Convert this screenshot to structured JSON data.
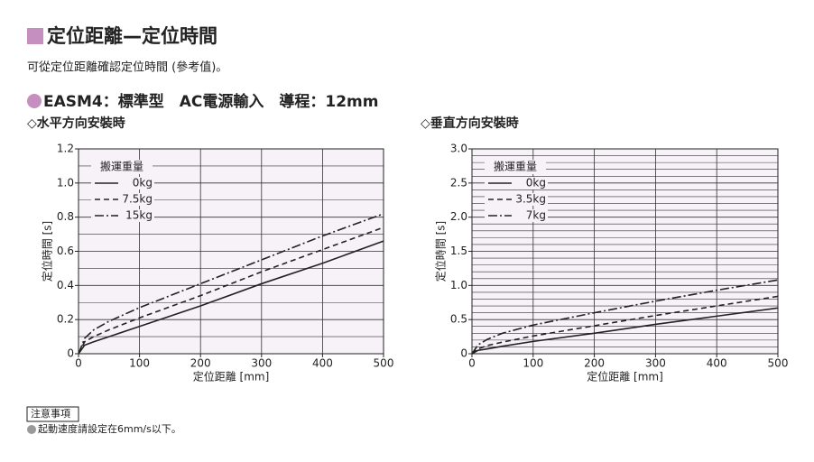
{
  "header": {
    "title": "定位距離—定位時間",
    "subtitle": "可從定位距離確認定位時間 (參考值)。",
    "section": "EASM4：標準型　AC電源輸入　導程：12mm"
  },
  "notes": {
    "heading": "注意事項",
    "items": [
      "起動速度請設定在6mm/s以下。"
    ]
  },
  "chart_data": [
    {
      "type": "line",
      "title": "◇水平方向安裝時",
      "xlabel": "定位距離 [mm]",
      "ylabel": "定位時間 [s]",
      "legend_title": "搬運重量",
      "legend": "upper left",
      "grid": true,
      "background": "#f7f1f8",
      "x": [
        0,
        10,
        25,
        50,
        100,
        200,
        300,
        400,
        500
      ],
      "xlim": [
        0,
        500
      ],
      "xticks": [
        0,
        100,
        200,
        300,
        400,
        500
      ],
      "ylim": [
        0,
        1.2
      ],
      "yticks": [
        0,
        0.2,
        0.4,
        0.6,
        0.8,
        {
          "value": 1,
          "label": "1.0"
        },
        1.2
      ],
      "y_minor_grid": [
        0.1,
        0.3,
        0.5,
        0.7,
        0.9,
        1.1
      ],
      "series": [
        {
          "name": "0kg",
          "color": "#222222",
          "dash": "solid",
          "values": [
            0,
            0.05,
            0.07,
            0.1,
            0.16,
            0.28,
            0.41,
            0.53,
            0.66
          ]
        },
        {
          "name": "7.5kg",
          "color": "#222222",
          "dash": "dashed",
          "values": [
            0,
            0.07,
            0.1,
            0.14,
            0.21,
            0.34,
            0.48,
            0.61,
            0.74
          ]
        },
        {
          "name": "15kg",
          "color": "#222222",
          "dash": "dashdot",
          "values": [
            0,
            0.09,
            0.14,
            0.19,
            0.27,
            0.41,
            0.55,
            0.69,
            0.82
          ]
        }
      ]
    },
    {
      "type": "line",
      "title": "◇垂直方向安裝時",
      "xlabel": "定位距離 [mm]",
      "ylabel": "定位時間 [s]",
      "legend_title": "搬運重量",
      "legend": "upper left",
      "grid": true,
      "background": "#f7f1f8",
      "x": [
        0,
        10,
        25,
        50,
        100,
        200,
        300,
        400,
        500
      ],
      "xlim": [
        0,
        500
      ],
      "xticks": [
        0,
        100,
        200,
        300,
        400,
        500
      ],
      "ylim": [
        0,
        3
      ],
      "yticks": [
        0,
        0.5,
        {
          "value": 1,
          "label": "1.0"
        },
        1.5,
        {
          "value": 2,
          "label": "2.0"
        },
        2.5,
        {
          "value": 3,
          "label": "3.0"
        }
      ],
      "y_minor_grid": [
        0.1,
        0.2,
        0.3,
        0.4,
        0.6,
        0.7,
        0.8,
        0.9,
        1.1,
        1.2,
        1.3,
        1.4,
        1.6,
        1.7,
        1.8,
        1.9,
        2.1,
        2.2,
        2.3,
        2.4,
        2.6,
        2.7,
        2.8,
        2.9
      ],
      "series": [
        {
          "name": "0kg",
          "color": "#222222",
          "dash": "solid",
          "values": [
            0,
            0.05,
            0.07,
            0.11,
            0.18,
            0.3,
            0.43,
            0.55,
            0.67
          ]
        },
        {
          "name": "3.5kg",
          "color": "#222222",
          "dash": "dashed",
          "values": [
            0,
            0.07,
            0.12,
            0.17,
            0.26,
            0.41,
            0.56,
            0.7,
            0.84
          ]
        },
        {
          "name": "7kg",
          "color": "#222222",
          "dash": "dashdot",
          "values": [
            0,
            0.13,
            0.21,
            0.3,
            0.42,
            0.6,
            0.77,
            0.93,
            1.08
          ]
        }
      ]
    }
  ]
}
